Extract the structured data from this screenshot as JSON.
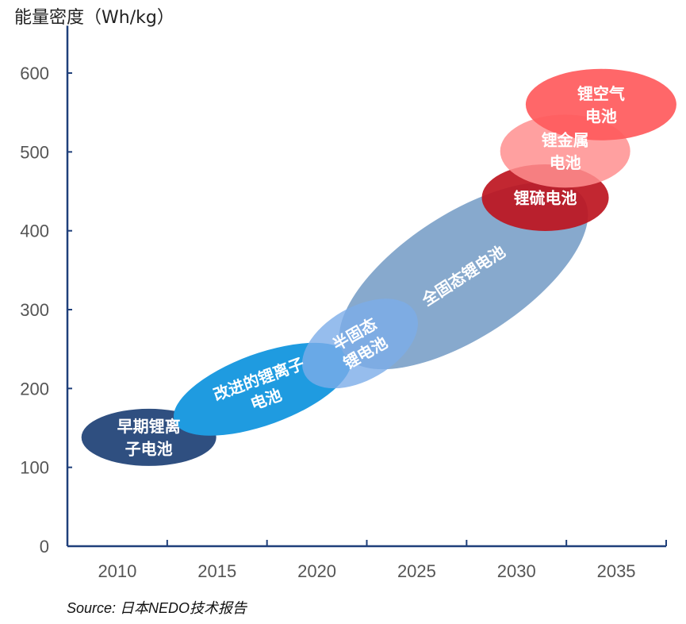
{
  "chart_data": {
    "type": "bubble-ellipse",
    "ylabel": "能量密度（Wh/kg）",
    "xlabel": "",
    "categories": [
      "2010",
      "2015",
      "2020",
      "2025",
      "2030",
      "2035"
    ],
    "yticks": [
      0,
      100,
      200,
      300,
      400,
      500,
      600
    ],
    "ylim": [
      0,
      650
    ],
    "grid": false,
    "series": [
      {
        "name": "早期锂离子电池",
        "lines": [
          "早期锂离",
          "子电池"
        ],
        "center_year": 2011.5,
        "center_energy": 138,
        "color": "#2f4f80"
      },
      {
        "name": "改进的锂离子电池",
        "lines": [
          "改进的锂离子",
          "电池"
        ],
        "center_year": 2017.2,
        "center_energy": 199,
        "color": "#1f9be0"
      },
      {
        "name": "全固态锂电池",
        "lines": [
          "全固态锂电池"
        ],
        "center_year": 2027.3,
        "center_energy": 343,
        "color": "#87a9cd"
      },
      {
        "name": "半固态锂电池",
        "lines": [
          "半固态",
          "锂电池"
        ],
        "center_year": 2022.1,
        "center_energy": 257,
        "color": "#7cace8"
      },
      {
        "name": "锂硫电池",
        "lines": [
          "锂硫电池"
        ],
        "center_year": 2031.4,
        "center_energy": 442,
        "color": "#bd1520"
      },
      {
        "name": "锂金属电池",
        "lines": [
          "锂金属",
          "电池"
        ],
        "center_year": 2032.4,
        "center_energy": 501,
        "color": "#ff8f8f"
      },
      {
        "name": "锂空气电池",
        "lines": [
          "锂空气",
          "电池"
        ],
        "center_year": 2034.2,
        "center_energy": 560,
        "color": "#ff5a5c"
      }
    ],
    "source": "Source: 日本NEDO技术报告"
  }
}
